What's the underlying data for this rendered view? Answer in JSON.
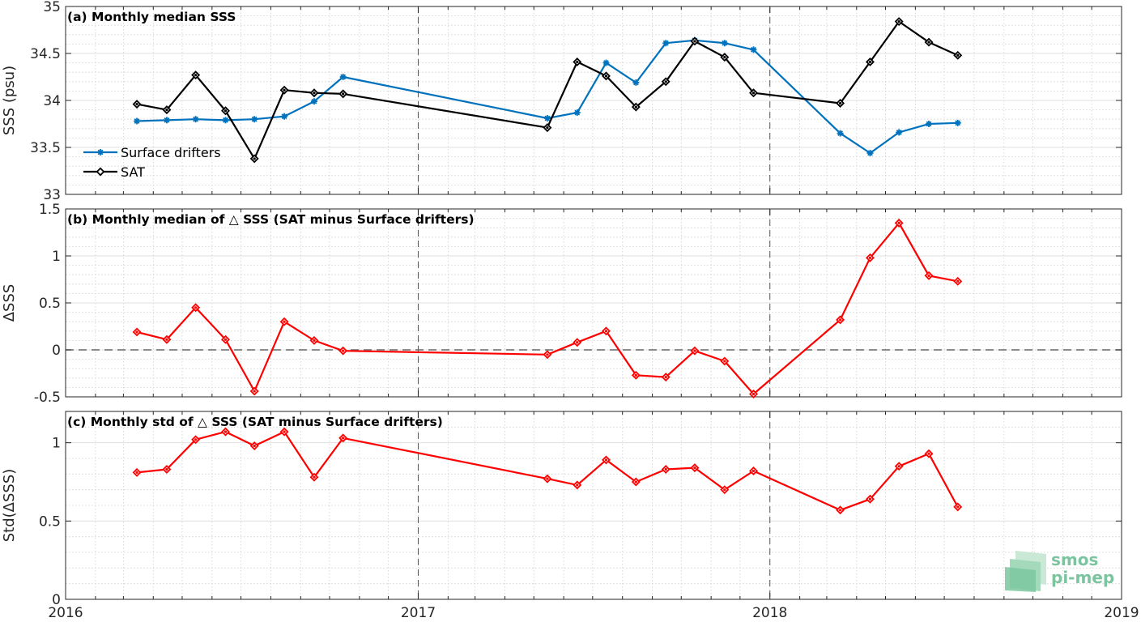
{
  "chart_data": [
    {
      "type": "line",
      "title": "(a) Monthly median SSS",
      "ylabel": "SSS (psu)",
      "xlim": [
        "2016-01-01",
        "2019-01-01"
      ],
      "ylim": [
        33,
        35
      ],
      "xticks": [
        "2016",
        "2017",
        "2018",
        "2019"
      ],
      "yticks": [
        33,
        33.5,
        34,
        34.5,
        35
      ],
      "ytick_labels": [
        "33",
        "33.5",
        "34",
        "34.5",
        "35"
      ],
      "grid": true,
      "legend": "lower-left",
      "series": [
        {
          "name": "Surface drifters",
          "color": "#0072bd",
          "marker": "asterisk",
          "x": [
            "2016-03-15",
            "2016-04-15",
            "2016-05-15",
            "2016-06-15",
            "2016-07-15",
            "2016-08-15",
            "2016-09-15",
            "2016-10-15",
            "2017-05-15",
            "2017-06-15",
            "2017-07-15",
            "2017-08-15",
            "2017-09-15",
            "2017-10-15",
            "2017-11-15",
            "2017-12-15",
            "2018-03-15",
            "2018-04-15",
            "2018-05-15",
            "2018-06-15",
            "2018-07-15"
          ],
          "values": [
            33.78,
            33.79,
            33.8,
            33.79,
            33.8,
            33.83,
            33.99,
            34.25,
            33.81,
            33.87,
            34.4,
            34.19,
            34.61,
            34.64,
            34.61,
            34.54,
            33.65,
            33.44,
            33.66,
            33.75,
            33.76
          ]
        },
        {
          "name": "SAT",
          "color": "#000000",
          "marker": "diamond",
          "x": [
            "2016-03-15",
            "2016-04-15",
            "2016-05-15",
            "2016-06-15",
            "2016-07-15",
            "2016-08-15",
            "2016-09-15",
            "2016-10-15",
            "2017-05-15",
            "2017-06-15",
            "2017-07-15",
            "2017-08-15",
            "2017-09-15",
            "2017-10-15",
            "2017-11-15",
            "2017-12-15",
            "2018-03-15",
            "2018-04-15",
            "2018-05-15",
            "2018-06-15",
            "2018-07-15"
          ],
          "values": [
            33.96,
            33.9,
            34.27,
            33.89,
            33.38,
            34.11,
            34.08,
            34.07,
            33.71,
            34.41,
            34.26,
            33.93,
            34.2,
            34.63,
            34.46,
            34.08,
            33.97,
            34.41,
            34.84,
            34.62,
            34.48
          ]
        }
      ]
    },
    {
      "type": "line",
      "title": "(b) Monthly median of △ SSS (SAT minus Surface drifters)",
      "ylabel": "ΔSSS",
      "xlim": [
        "2016-01-01",
        "2019-01-01"
      ],
      "ylim": [
        -0.5,
        1.5
      ],
      "yticks": [
        -0.5,
        0,
        0.5,
        1,
        1.5
      ],
      "ytick_labels": [
        "-0.5",
        "0",
        "0.5",
        "1",
        "1.5"
      ],
      "grid": true,
      "zero_line": true,
      "series": [
        {
          "color": "#ff0000",
          "marker": "diamond",
          "x": [
            "2016-03-15",
            "2016-04-15",
            "2016-05-15",
            "2016-06-15",
            "2016-07-15",
            "2016-08-15",
            "2016-09-15",
            "2016-10-15",
            "2017-05-15",
            "2017-06-15",
            "2017-07-15",
            "2017-08-15",
            "2017-09-15",
            "2017-10-15",
            "2017-11-15",
            "2017-12-15",
            "2018-03-15",
            "2018-04-15",
            "2018-05-15",
            "2018-06-15",
            "2018-07-15"
          ],
          "values": [
            0.19,
            0.11,
            0.45,
            0.11,
            -0.44,
            0.3,
            0.1,
            -0.01,
            -0.05,
            0.08,
            0.2,
            -0.27,
            -0.29,
            -0.01,
            -0.12,
            -0.47,
            0.32,
            0.98,
            1.35,
            0.79,
            0.73
          ]
        }
      ]
    },
    {
      "type": "line",
      "title": "(c) Monthly std of △ SSS (SAT minus Surface drifters)",
      "ylabel": "Std(ΔSSS)",
      "xlim": [
        "2016-01-01",
        "2019-01-01"
      ],
      "ylim": [
        0,
        1.2
      ],
      "yticks": [
        0,
        0.5,
        1
      ],
      "ytick_labels": [
        "0",
        "0.5",
        "1"
      ],
      "xtick_labels": [
        "2016",
        "2017",
        "2018",
        "2019"
      ],
      "grid": true,
      "series": [
        {
          "color": "#ff0000",
          "marker": "diamond",
          "x": [
            "2016-03-15",
            "2016-04-15",
            "2016-05-15",
            "2016-06-15",
            "2016-07-15",
            "2016-08-15",
            "2016-09-15",
            "2016-10-15",
            "2017-05-15",
            "2017-06-15",
            "2017-07-15",
            "2017-08-15",
            "2017-09-15",
            "2017-10-15",
            "2017-11-15",
            "2017-12-15",
            "2018-03-15",
            "2018-04-15",
            "2018-05-15",
            "2018-06-15",
            "2018-07-15"
          ],
          "values": [
            0.81,
            0.83,
            1.02,
            1.07,
            0.98,
            1.07,
            0.78,
            1.03,
            0.77,
            0.73,
            0.89,
            0.75,
            0.83,
            0.84,
            0.7,
            0.82,
            0.57,
            0.64,
            0.85,
            0.93,
            0.59
          ]
        }
      ]
    }
  ],
  "logo": {
    "line1": "smos",
    "line2": "pi-mep"
  }
}
